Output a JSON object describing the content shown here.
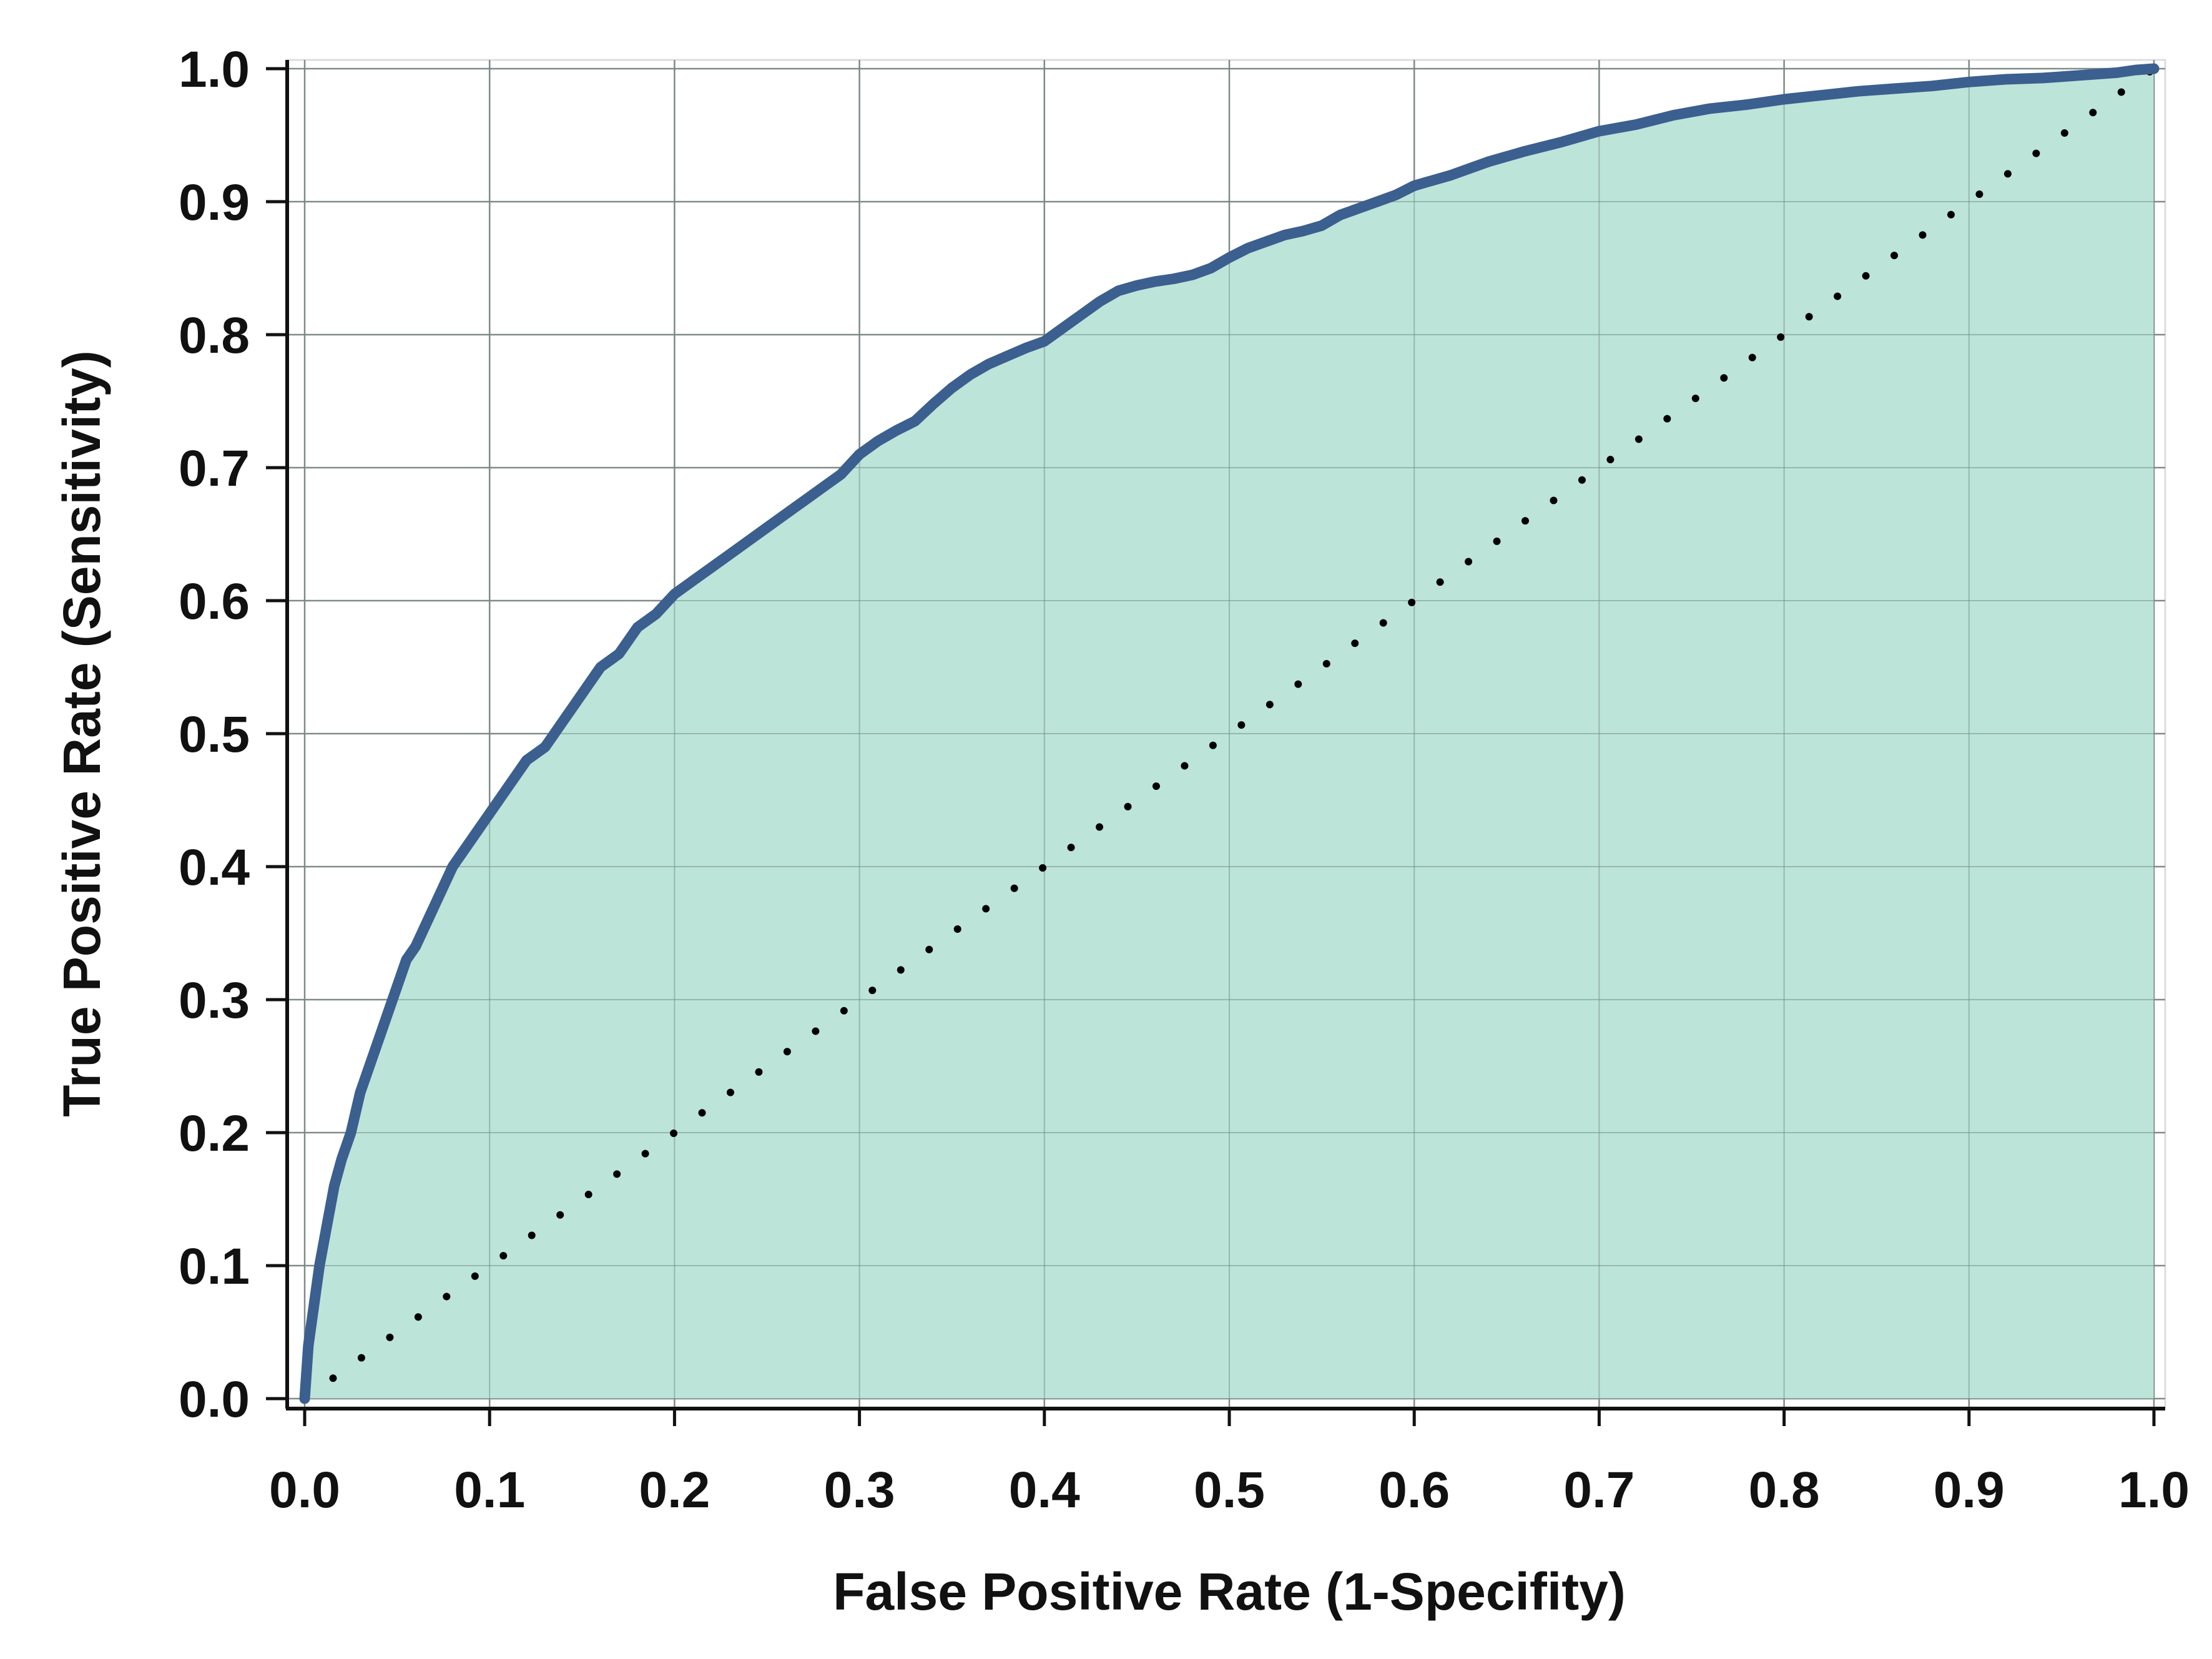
{
  "chart_data": {
    "type": "area",
    "title": "",
    "xlabel": "False Positive Rate (1-Specifity)",
    "ylabel": "True Positive Rate (Sensitivity)",
    "xlim": [
      0.0,
      1.0
    ],
    "ylim": [
      0.0,
      1.0
    ],
    "x_ticks": [
      "0.0",
      "0.1",
      "0.2",
      "0.3",
      "0.4",
      "0.5",
      "0.6",
      "0.7",
      "0.8",
      "0.9",
      "1.0"
    ],
    "y_ticks": [
      "0.0",
      "0.1",
      "0.2",
      "0.3",
      "0.4",
      "0.5",
      "0.6",
      "0.7",
      "0.8",
      "0.9",
      "1.0"
    ],
    "grid": true,
    "legend": false,
    "series": [
      {
        "style": "solid line with filled area below",
        "color": "#3b5f8f",
        "fill_color": "#bde4d9",
        "x": [
          0.0,
          0.002,
          0.005,
          0.008,
          0.012,
          0.016,
          0.02,
          0.025,
          0.03,
          0.035,
          0.04,
          0.045,
          0.05,
          0.055,
          0.06,
          0.07,
          0.08,
          0.09,
          0.1,
          0.11,
          0.12,
          0.13,
          0.14,
          0.15,
          0.16,
          0.17,
          0.18,
          0.19,
          0.2,
          0.21,
          0.22,
          0.23,
          0.24,
          0.25,
          0.26,
          0.27,
          0.28,
          0.29,
          0.3,
          0.31,
          0.32,
          0.33,
          0.34,
          0.35,
          0.36,
          0.37,
          0.38,
          0.39,
          0.4,
          0.41,
          0.42,
          0.43,
          0.44,
          0.45,
          0.46,
          0.47,
          0.48,
          0.49,
          0.5,
          0.51,
          0.52,
          0.53,
          0.54,
          0.55,
          0.56,
          0.57,
          0.58,
          0.59,
          0.6,
          0.62,
          0.64,
          0.66,
          0.68,
          0.7,
          0.72,
          0.74,
          0.76,
          0.78,
          0.8,
          0.82,
          0.84,
          0.86,
          0.88,
          0.9,
          0.92,
          0.94,
          0.96,
          0.98,
          0.99,
          1.0
        ],
        "y": [
          0.0,
          0.04,
          0.07,
          0.1,
          0.13,
          0.16,
          0.18,
          0.2,
          0.23,
          0.25,
          0.27,
          0.29,
          0.31,
          0.33,
          0.34,
          0.37,
          0.4,
          0.42,
          0.44,
          0.46,
          0.48,
          0.49,
          0.51,
          0.53,
          0.55,
          0.56,
          0.58,
          0.59,
          0.605,
          0.615,
          0.625,
          0.635,
          0.645,
          0.655,
          0.665,
          0.675,
          0.685,
          0.695,
          0.71,
          0.72,
          0.728,
          0.735,
          0.748,
          0.76,
          0.77,
          0.778,
          0.784,
          0.79,
          0.795,
          0.805,
          0.815,
          0.825,
          0.833,
          0.837,
          0.84,
          0.842,
          0.845,
          0.85,
          0.858,
          0.865,
          0.87,
          0.875,
          0.878,
          0.882,
          0.89,
          0.895,
          0.9,
          0.905,
          0.912,
          0.92,
          0.93,
          0.938,
          0.945,
          0.953,
          0.958,
          0.965,
          0.97,
          0.973,
          0.977,
          0.98,
          0.983,
          0.985,
          0.987,
          0.99,
          0.992,
          0.993,
          0.995,
          0.997,
          0.999,
          1.0
        ]
      },
      {
        "style": "dotted diagonal reference",
        "color": "#000000",
        "x": [
          0.0,
          1.0
        ],
        "y": [
          0.0,
          1.0
        ]
      }
    ]
  }
}
